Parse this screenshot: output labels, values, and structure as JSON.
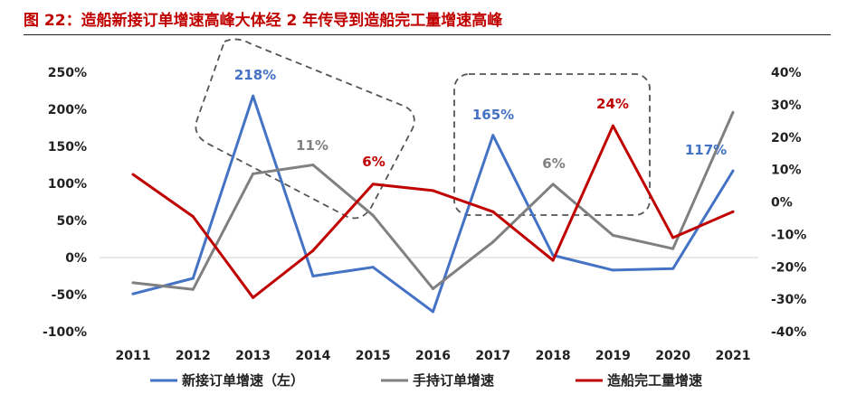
{
  "title": "图 22：造船新接订单增速高峰大体经 2 年传导到造船完工量增速高峰",
  "chart_data": {
    "type": "line",
    "categories": [
      "2011",
      "2012",
      "2013",
      "2014",
      "2015",
      "2016",
      "2017",
      "2018",
      "2019",
      "2020",
      "2021"
    ],
    "y_left": {
      "ticks": [
        "-100%",
        "-50%",
        "0%",
        "50%",
        "100%",
        "150%",
        "200%",
        "250%"
      ],
      "ylim": [
        -100,
        250
      ]
    },
    "y_right": {
      "ticks": [
        "-40%",
        "-30%",
        "-20%",
        "-10%",
        "0%",
        "10%",
        "20%",
        "30%",
        "40%"
      ],
      "ylim": [
        -40,
        40
      ]
    },
    "series": [
      {
        "name": "新接订单增速（左）",
        "axis": "left",
        "color": "#4472c4",
        "values": [
          -49,
          -28,
          218,
          -25,
          -13,
          -73,
          165,
          3,
          -17,
          -15,
          117
        ]
      },
      {
        "name": "手持订单增速",
        "axis": "left",
        "color": "#808080",
        "values": [
          -34,
          -43,
          113,
          125,
          57,
          -42,
          21,
          99,
          30,
          12,
          196
        ]
      },
      {
        "name": "造船完工量增速",
        "axis": "right",
        "color": "#c00000",
        "values": [
          8.5,
          -4.5,
          -29.5,
          -15,
          5.5,
          3.5,
          -3,
          -18,
          23.5,
          -11,
          -3
        ]
      }
    ],
    "annotations": [
      {
        "text": "218%",
        "color": "#4472c4"
      },
      {
        "text": "11%",
        "color": "#808080"
      },
      {
        "text": "6%",
        "color": "#c00000"
      },
      {
        "text": "165%",
        "color": "#4472c4"
      },
      {
        "text": "6%",
        "color": "#808080"
      },
      {
        "text": "24%",
        "color": "#c00000"
      },
      {
        "text": "117%",
        "color": "#4472c4"
      }
    ],
    "legend_placement": "bottom",
    "grid": false
  }
}
